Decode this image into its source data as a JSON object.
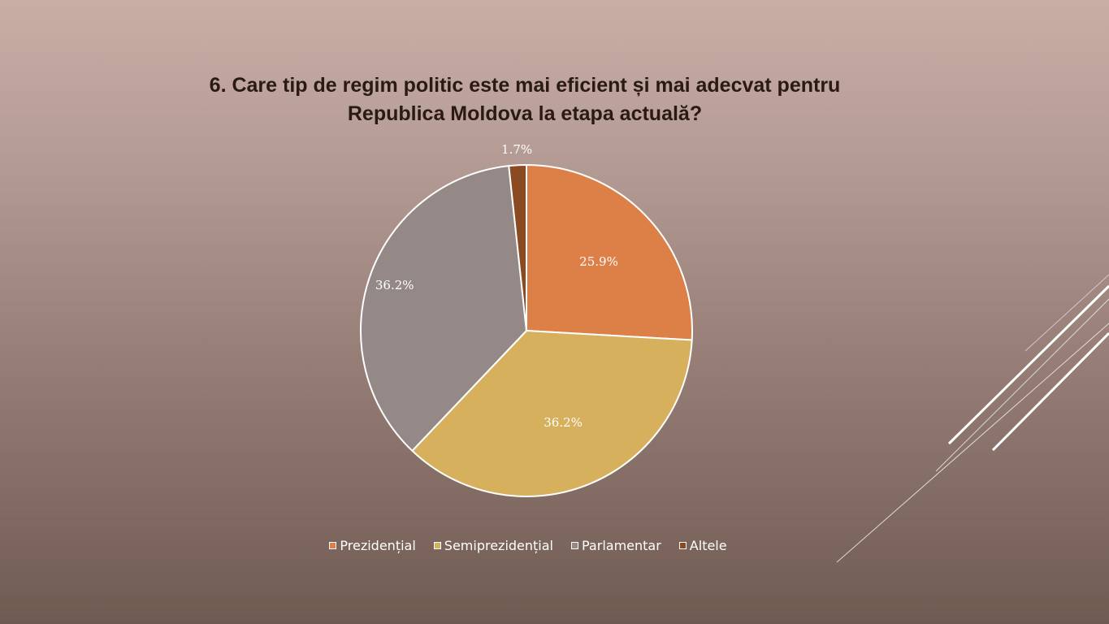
{
  "slide": {
    "title_line1": "6. Care tip de regim politic este mai eficient și mai adecvat pentru",
    "title_line2": "Republica Moldova la etapa actuală?"
  },
  "chart_data": {
    "type": "pie",
    "title": "6. Care tip de regim politic este mai eficient și mai adecvat pentru Republica Moldova la etapa actuală?",
    "categories": [
      "Prezidențial",
      "Semiprezidențial",
      "Parlamentar",
      "Altele"
    ],
    "values": [
      25.9,
      36.2,
      36.2,
      1.7
    ],
    "labels": [
      "25.9%",
      "36.2%",
      "36.2%",
      "1.7%"
    ],
    "colors": [
      "#dd8048",
      "#d6b05c",
      "#958987",
      "#8b4a22"
    ],
    "legend_position": "bottom"
  }
}
